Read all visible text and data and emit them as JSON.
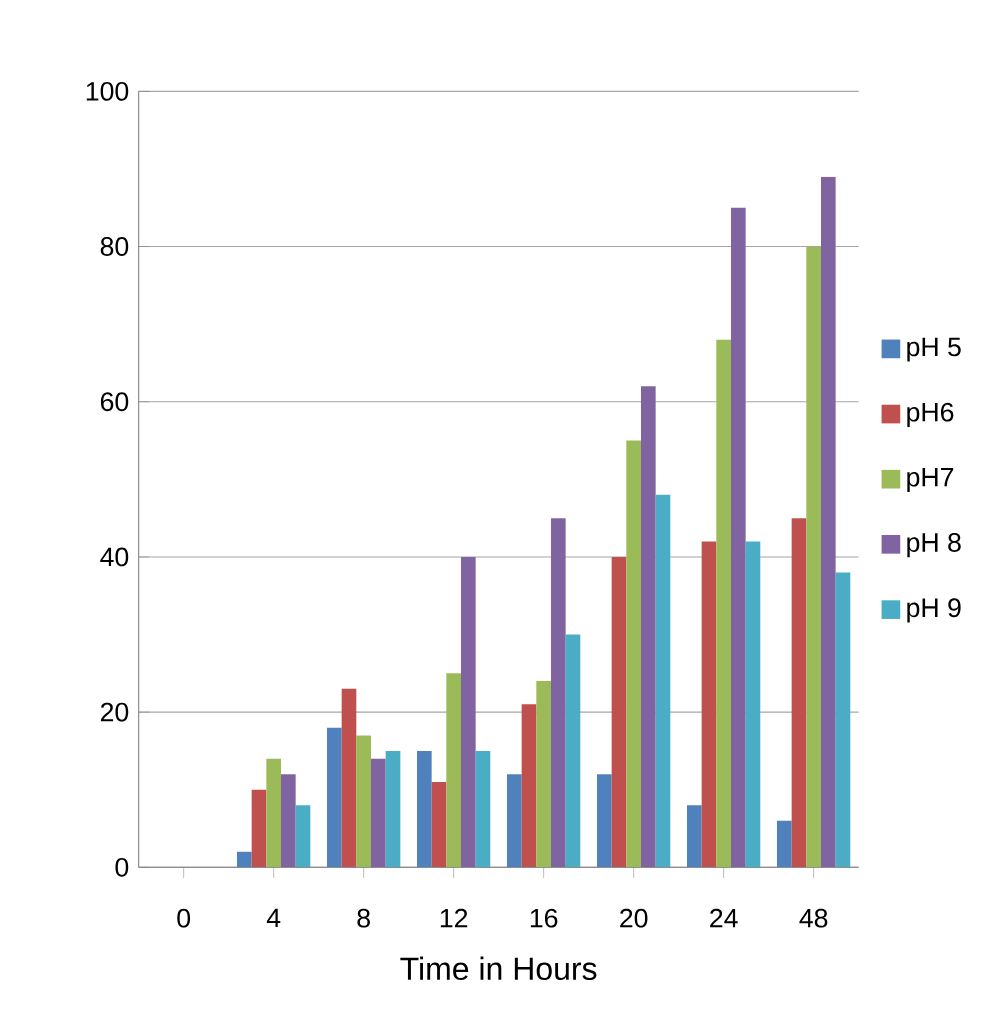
{
  "chart_data": {
    "type": "bar",
    "xlabel": "Time in Hours",
    "categories": [
      "0",
      "4",
      "8",
      "12",
      "16",
      "20",
      "24",
      "48"
    ],
    "series": [
      {
        "name": "pH 5",
        "color": "#4f81bd",
        "values": [
          0,
          2,
          18,
          15,
          12,
          12,
          8,
          6
        ]
      },
      {
        "name": "pH6",
        "color": "#c0504d",
        "values": [
          0,
          10,
          23,
          11,
          21,
          40,
          42,
          45
        ]
      },
      {
        "name": "pH7",
        "color": "#9bbb59",
        "values": [
          0,
          14,
          17,
          25,
          24,
          55,
          68,
          80
        ]
      },
      {
        "name": "pH 8",
        "color": "#8064a2",
        "values": [
          0,
          12,
          14,
          40,
          45,
          62,
          85,
          89
        ]
      },
      {
        "name": "pH 9",
        "color": "#4bacc6",
        "values": [
          0,
          8,
          15,
          15,
          30,
          48,
          42,
          38
        ]
      }
    ],
    "ylim": [
      0,
      100
    ],
    "yticks": [
      0,
      20,
      40,
      60,
      80,
      100
    ],
    "grid": "y",
    "legend": "right"
  }
}
